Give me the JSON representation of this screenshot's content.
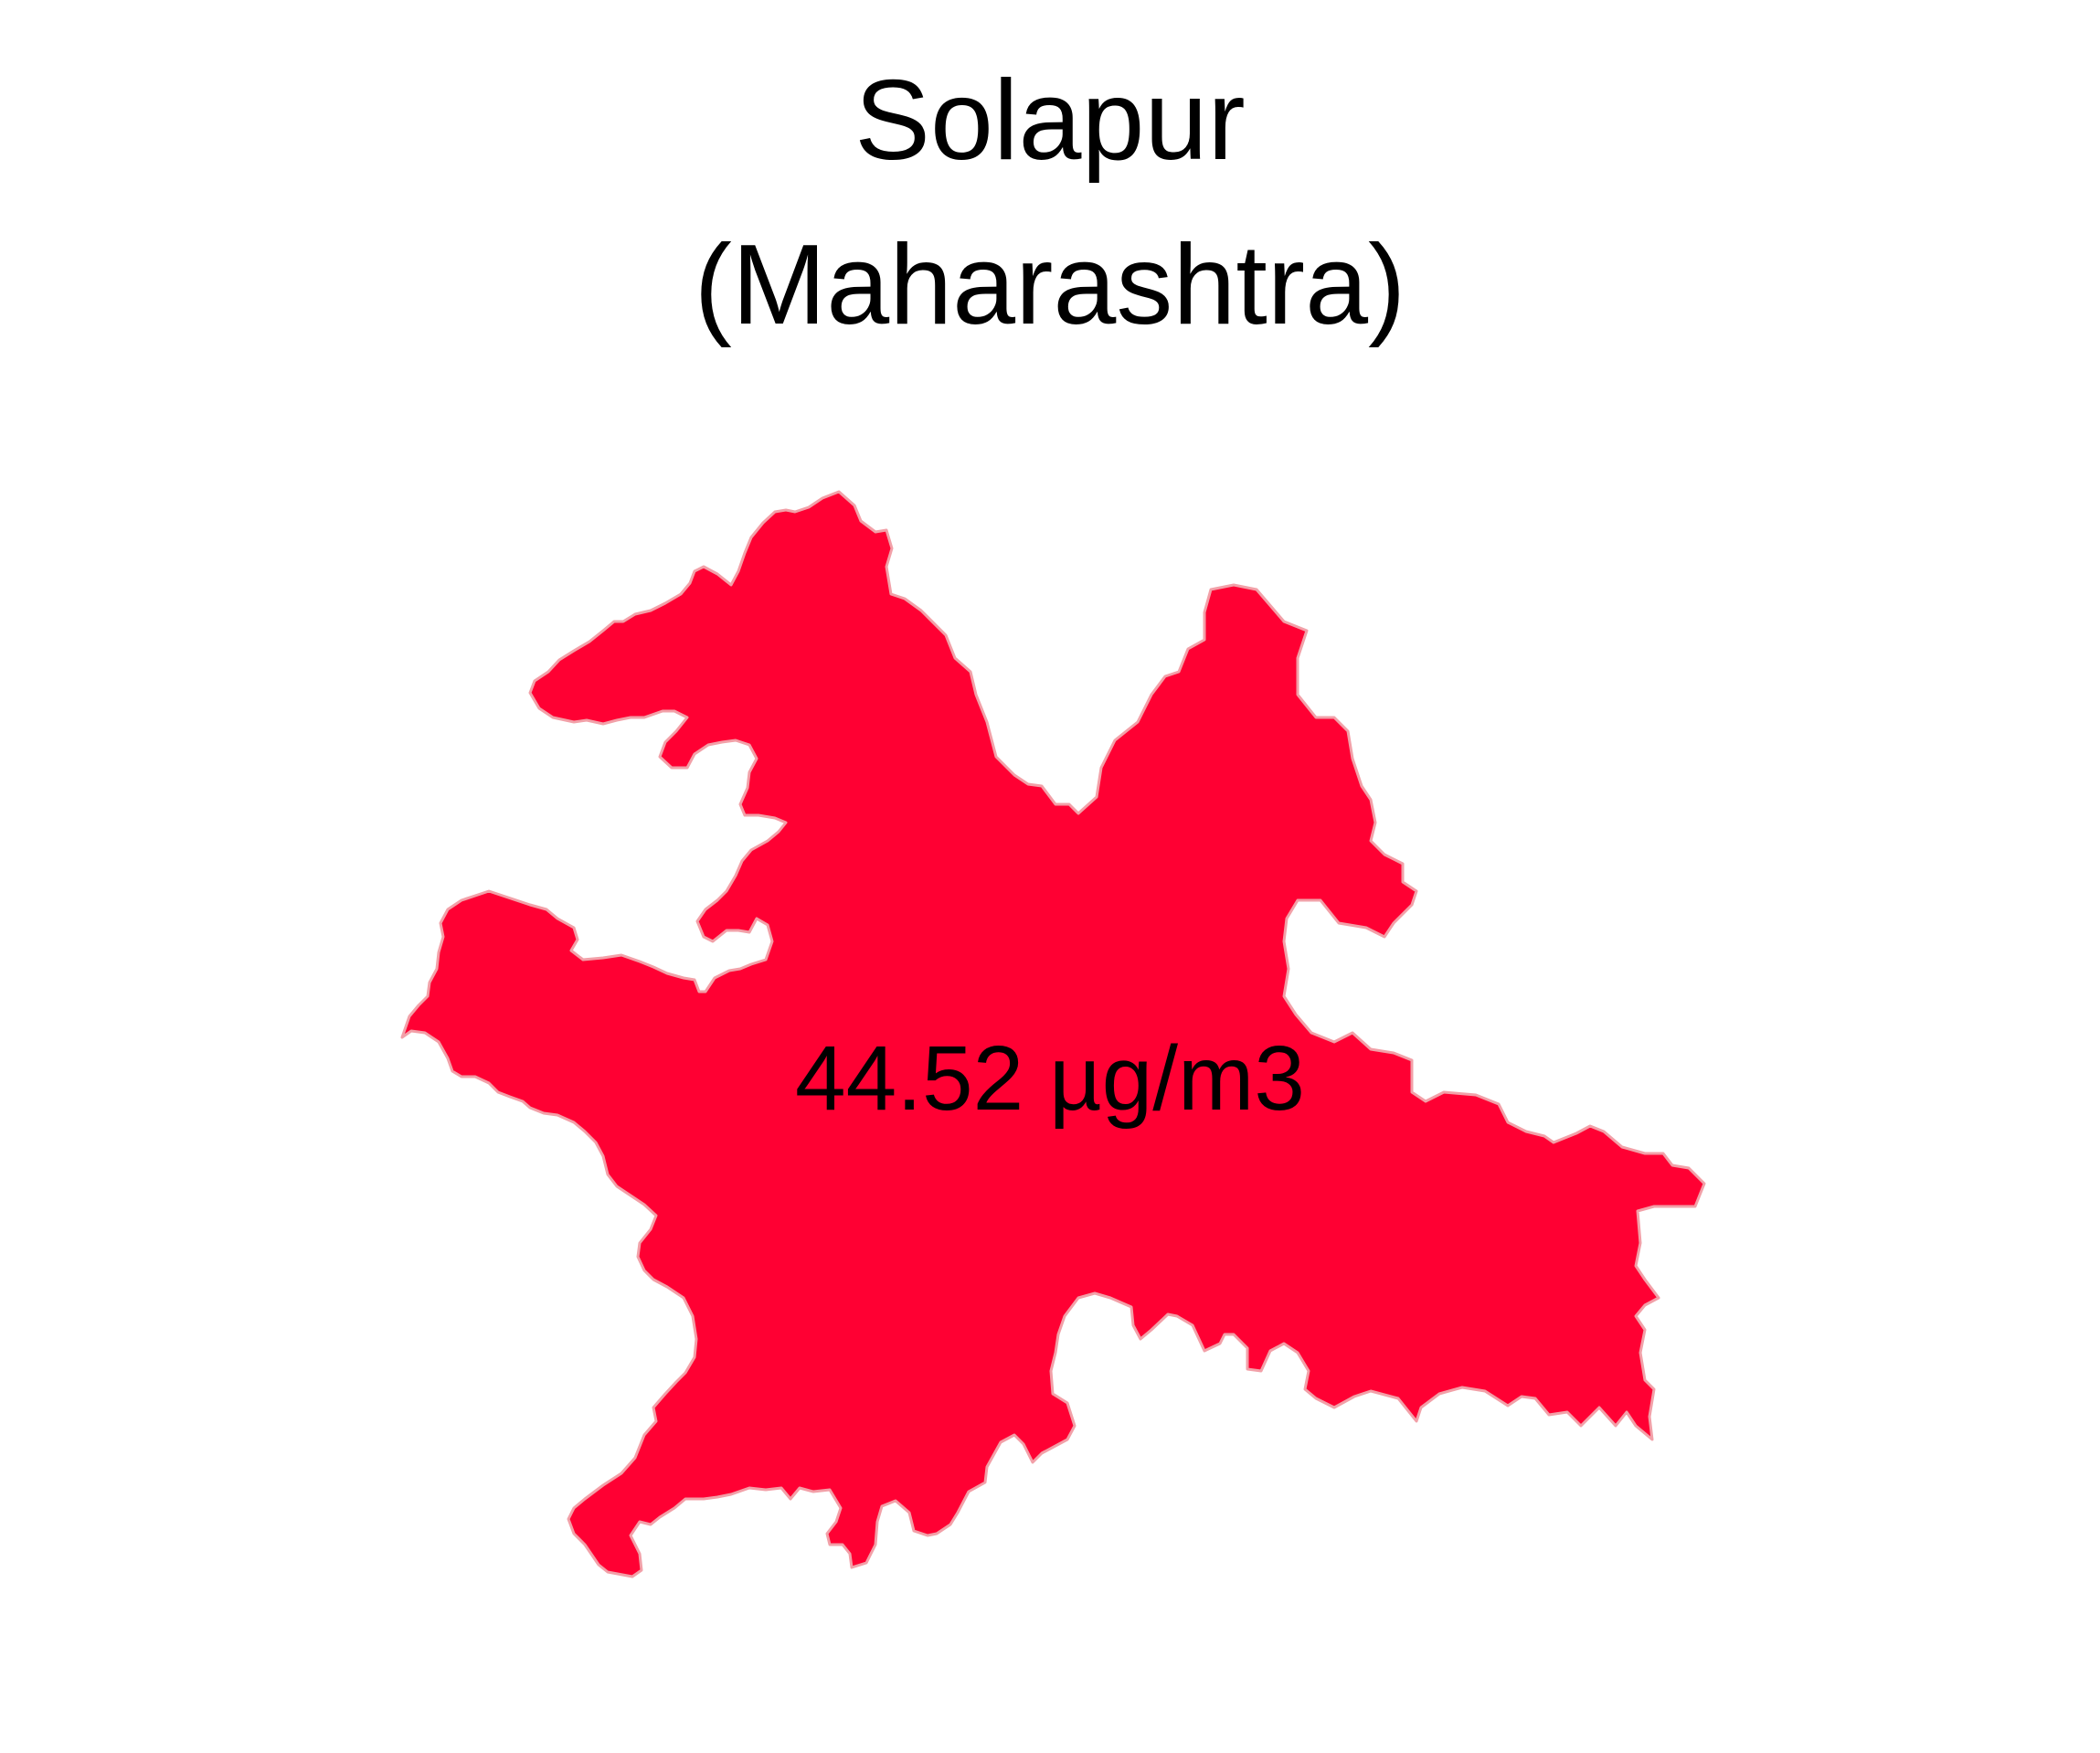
{
  "map": {
    "title_line_1": "Solapur",
    "title_line_2": "(Maharashtra)",
    "region_value_label": "44.52 µg/m3",
    "region_fill_color": "#ff0033",
    "region_stroke_color": "#f2a0a8",
    "background_color": "#ffffff"
  }
}
